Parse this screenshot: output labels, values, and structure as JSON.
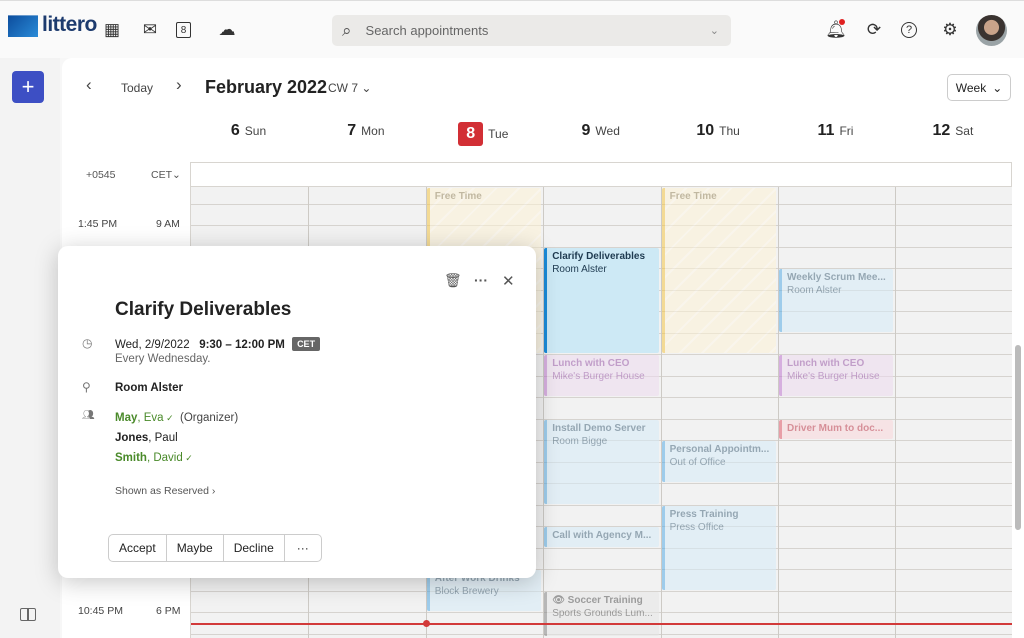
{
  "app": {
    "name": "littero"
  },
  "topbar": {
    "search_placeholder": "Search appointments",
    "icons": [
      "apps-grid-icon",
      "mail-icon",
      "calendar-icon",
      "cloud-icon",
      "bell-icon",
      "sync-icon",
      "help-icon",
      "gear-icon"
    ],
    "notification_dot_color": "#e02020"
  },
  "toolbar": {
    "today_label": "Today",
    "title": "February 2022",
    "cw_label": "CW 7",
    "view_label": "Week"
  },
  "days": [
    {
      "num": "6",
      "name": "Sun"
    },
    {
      "num": "7",
      "name": "Mon"
    },
    {
      "num": "8",
      "name": "Tue",
      "today": true
    },
    {
      "num": "9",
      "name": "Wed"
    },
    {
      "num": "10",
      "name": "Thu"
    },
    {
      "num": "11",
      "name": "Fri"
    },
    {
      "num": "12",
      "name": "Sat"
    }
  ],
  "timezones": {
    "secondary": "+0545",
    "primary": "CET"
  },
  "time_labels": [
    {
      "secondary": "1:45 PM",
      "primary": "9 AM",
      "hour": 9
    },
    {
      "secondary": "10:45 PM",
      "primary": "6 PM",
      "hour": 18
    }
  ],
  "now_time": "18:15",
  "colors": {
    "today": "#d22f35",
    "accent": "#3d4fc4",
    "now_line": "#d23a3a"
  },
  "events": [
    {
      "day": 2,
      "start": "8:00",
      "end": "12:00",
      "title": "Free Time",
      "sub": "",
      "kind": "free"
    },
    {
      "day": 2,
      "start": "17:00",
      "end": "18:00",
      "title": "After Work Drinks",
      "sub": "Block Brewery",
      "kind": "blue"
    },
    {
      "day": 3,
      "start": "9:30",
      "end": "12:00",
      "title": "Clarify Deliverables",
      "sub": "Room Alster",
      "kind": "active"
    },
    {
      "day": 3,
      "start": "12:00",
      "end": "13:00",
      "title": "Lunch with CEO",
      "sub": "Mike's Burger House",
      "kind": "purple"
    },
    {
      "day": 3,
      "start": "13:30",
      "end": "15:30",
      "title": "Install Demo Server",
      "sub": "Room Bigge",
      "kind": "blue"
    },
    {
      "day": 3,
      "start": "16:00",
      "end": "16:30",
      "title": "Call with Agency M...",
      "sub": "",
      "kind": "blue"
    },
    {
      "day": 3,
      "start": "17:30",
      "end": "19:00",
      "title": "Soccer Training",
      "sub": "Sports Grounds Lum...",
      "kind": "gray",
      "private": true
    },
    {
      "day": 4,
      "start": "8:00",
      "end": "12:00",
      "title": "Free Time",
      "sub": "",
      "kind": "free"
    },
    {
      "day": 4,
      "start": "14:00",
      "end": "15:00",
      "title": "Personal Appointm...",
      "sub": "Out of Office",
      "kind": "blue"
    },
    {
      "day": 4,
      "start": "15:30",
      "end": "17:30",
      "title": "Press Training",
      "sub": "Press Office",
      "kind": "blue"
    },
    {
      "day": 5,
      "start": "10:00",
      "end": "11:30",
      "title": "Weekly Scrum Mee...",
      "sub": "Room Alster",
      "kind": "blue"
    },
    {
      "day": 5,
      "start": "12:00",
      "end": "13:00",
      "title": "Lunch with CEO",
      "sub": "Mike's Burger House",
      "kind": "purple"
    },
    {
      "day": 5,
      "start": "13:30",
      "end": "14:00",
      "title": "Driver Mum to doc...",
      "sub": "",
      "kind": "red"
    }
  ],
  "popup": {
    "title": "Clarify Deliverables",
    "date": "Wed, 2/9/2022",
    "time": "9:30 – 12:00 PM",
    "tz": "CET",
    "recurrence": "Every Wednesday.",
    "location": "Room Alster",
    "attendees": [
      {
        "last": "May",
        "first": "Eva",
        "accepted": true,
        "note": "(Organizer)"
      },
      {
        "last": "Jones",
        "first": "Paul",
        "accepted": false,
        "note": ""
      },
      {
        "last": "Smith",
        "first": "David",
        "accepted": true,
        "note": ""
      }
    ],
    "show_as": "Shown as Reserved",
    "actions": [
      "Accept",
      "Maybe",
      "Decline",
      "···"
    ]
  }
}
